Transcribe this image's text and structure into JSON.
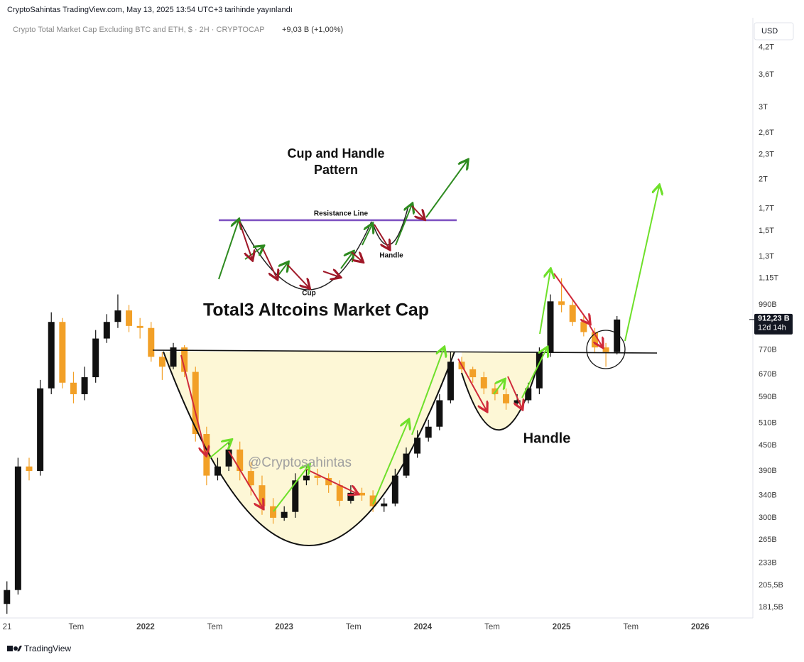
{
  "chart_data": {
    "type": "candlestick",
    "header": "CryptoSahintas TradingView.com, May 13, 2025 13:54 UTC+3 tarihinde yayınlandı",
    "symbol": "Crypto Total Market Cap Excluding BTC and ETH, $ · 2H · CRYPTOCAP",
    "change": "+9,03 B (+1,00%)",
    "currency": "USD",
    "log_scale": true,
    "grid": false,
    "x": [
      2021,
      2021.08,
      2021.16,
      2021.24,
      2021.32,
      2021.4,
      2021.48,
      2021.56,
      2021.64,
      2021.72,
      2021.8,
      2021.88,
      2021.96,
      2022.04,
      2022.12,
      2022.2,
      2022.28,
      2022.36,
      2022.44,
      2022.52,
      2022.6,
      2022.68,
      2022.76,
      2022.84,
      2022.92,
      2023,
      2023.08,
      2023.16,
      2023.24,
      2023.32,
      2023.4,
      2023.48,
      2023.56,
      2023.64,
      2023.72,
      2023.8,
      2023.88,
      2023.96,
      2024.04,
      2024.12,
      2024.2,
      2024.28,
      2024.36,
      2024.44,
      2024.52,
      2024.6,
      2024.68,
      2024.76,
      2024.84,
      2024.92,
      2025,
      2025.08,
      2025.16,
      2025.24,
      2025.32,
      2025.4
    ],
    "series": [
      {
        "up_color": "#111111",
        "down_color": "#f2a027",
        "open": [
          185,
          200,
          400,
          390,
          620,
          900,
          640,
          600,
          660,
          820,
          900,
          960,
          880,
          870,
          740,
          700,
          780,
          680,
          480,
          380,
          400,
          440,
          390,
          360,
          320,
          300,
          310,
          370,
          380,
          375,
          360,
          330,
          345,
          340,
          320,
          325,
          380,
          430,
          470,
          500,
          580,
          720,
          690,
          660,
          620,
          600,
          570,
          580,
          620,
          760,
          1010,
          990,
          900,
          850,
          780,
          760
        ],
        "high": [
          210,
          420,
          420,
          650,
          950,
          920,
          680,
          700,
          860,
          940,
          1050,
          990,
          920,
          900,
          760,
          800,
          790,
          700,
          500,
          420,
          460,
          460,
          410,
          380,
          335,
          320,
          385,
          400,
          395,
          385,
          370,
          360,
          355,
          350,
          335,
          395,
          445,
          490,
          520,
          600,
          760,
          740,
          700,
          680,
          640,
          620,
          600,
          640,
          780,
          1050,
          1150,
          1020,
          930,
          870,
          800,
          930
        ],
        "low": [
          175,
          195,
          370,
          380,
          600,
          620,
          570,
          580,
          640,
          800,
          870,
          850,
          820,
          720,
          650,
          690,
          660,
          460,
          360,
          370,
          390,
          370,
          340,
          305,
          290,
          295,
          300,
          360,
          360,
          345,
          320,
          325,
          330,
          310,
          310,
          320,
          375,
          420,
          460,
          490,
          570,
          670,
          640,
          600,
          580,
          550,
          560,
          570,
          600,
          740,
          950,
          880,
          830,
          760,
          700,
          750
        ],
        "close": [
          200,
          400,
          390,
          620,
          900,
          640,
          600,
          660,
          820,
          900,
          960,
          880,
          870,
          740,
          700,
          780,
          680,
          480,
          380,
          400,
          440,
          390,
          360,
          320,
          300,
          310,
          370,
          380,
          375,
          360,
          330,
          345,
          340,
          320,
          325,
          380,
          430,
          470,
          500,
          580,
          720,
          690,
          660,
          620,
          600,
          570,
          580,
          620,
          760,
          1010,
          990,
          900,
          850,
          780,
          760,
          912.23
        ]
      }
    ],
    "xlim": [
      2020.95,
      2026.38
    ],
    "xticks": [
      {
        "value": 2021,
        "label": "21"
      },
      {
        "value": 2021.5,
        "label": "Tem"
      },
      2022,
      {
        "value": 2022.5,
        "label": "Tem"
      },
      2023,
      {
        "value": 2023.5,
        "label": "Tem"
      },
      2024,
      {
        "value": 2024.5,
        "label": "Tem"
      },
      2025,
      {
        "value": 2025.5,
        "label": "Tem"
      },
      2026
    ],
    "ylim": [
      171,
      4860
    ],
    "yticks": [
      {
        "value": 4200,
        "label": "4,2T"
      },
      {
        "value": 3600,
        "label": "3,6T"
      },
      {
        "value": 3000,
        "label": "3T"
      },
      {
        "value": 2600,
        "label": "2,6T"
      },
      {
        "value": 2300,
        "label": "2,3T"
      },
      {
        "value": 2000,
        "label": "2T"
      },
      {
        "value": 1700,
        "label": "1,7T"
      },
      {
        "value": 1500,
        "label": "1,5T"
      },
      {
        "value": 1300,
        "label": "1,3T"
      },
      {
        "value": 1150,
        "label": "1,15T"
      },
      {
        "value": 990,
        "label": "990B"
      },
      {
        "value": 770,
        "label": "770B"
      },
      {
        "value": 670,
        "label": "670B"
      },
      {
        "value": 590,
        "label": "590B"
      },
      {
        "value": 510,
        "label": "510B"
      },
      {
        "value": 450,
        "label": "450B"
      },
      {
        "value": 390,
        "label": "390B"
      },
      {
        "value": 340,
        "label": "340B"
      },
      {
        "value": 300,
        "label": "300B"
      },
      {
        "value": 265,
        "label": "265B"
      },
      {
        "value": 233,
        "label": "233B"
      },
      {
        "value": 205.5,
        "label": "205,5B"
      },
      {
        "value": 181.5,
        "label": "181,5B"
      }
    ],
    "last_price": {
      "value": 912.23,
      "label": "912,23 B"
    },
    "countdown": "12d 14h",
    "annotations": {
      "pattern_title": "Cup and Handle Pattern",
      "resistance_line": "Resistance Line",
      "handle_small": "Handle",
      "cup": "Cup",
      "main_title": "Total3 Altcoins Market Cap",
      "watermark": "@Cryptosahintas",
      "handle": "Handle"
    },
    "footer": "TradingView"
  }
}
